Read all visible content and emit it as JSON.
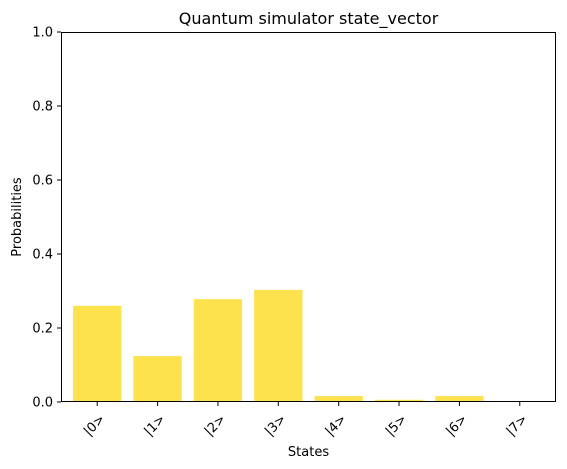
{
  "chart_data": {
    "type": "bar",
    "title": "Quantum simulator state_vector",
    "xlabel": "States",
    "ylabel": "Probabilities",
    "categories": [
      "|0>",
      "|1>",
      "|2>",
      "|3>",
      "|4>",
      "|5>",
      "|6>",
      "|7>"
    ],
    "values": [
      0.26,
      0.124,
      0.278,
      0.303,
      0.016,
      0.006,
      0.016,
      0.002
    ],
    "ylim": [
      0,
      1
    ],
    "yticks": [
      0,
      0.2,
      0.4,
      0.6,
      0.8,
      1
    ],
    "ytick_labels": [
      "0.0",
      "0.2",
      "0.4",
      "0.6",
      "0.8",
      "1.0"
    ],
    "bar_color": "#fde14d",
    "grid": false,
    "legend": false
  }
}
